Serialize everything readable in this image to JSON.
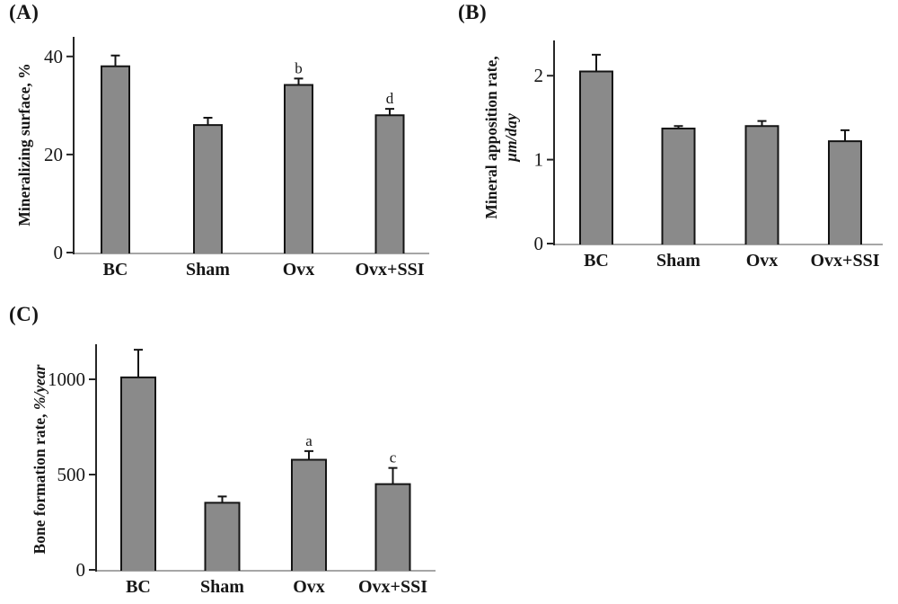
{
  "style": {
    "background": "#ffffff",
    "bar_fill": "#8a8a8a",
    "bar_stroke": "#141414",
    "x_axis_color": "#a6a6a6",
    "y_axis_color": "#262626",
    "text_color": "#161616"
  },
  "chart_data": [
    {
      "panel_label": "(A)",
      "type": "bar",
      "title": "",
      "xlabel": "",
      "ylabel": "Mineralizing surface, %",
      "ylabel_lines": [
        [
          {
            "text": "Mineralizing surface, %",
            "italic": false
          }
        ]
      ],
      "categories": [
        "BC",
        "Sham",
        "Ovx",
        "Ovx+SSI"
      ],
      "values": [
        38,
        26,
        34.2,
        28
      ],
      "errors": [
        2.2,
        1.5,
        1.3,
        1.3
      ],
      "annotations": [
        "",
        "",
        "b",
        "d"
      ],
      "yticks": [
        0,
        20,
        40
      ],
      "ylim": [
        0,
        44
      ],
      "grid": false,
      "legend": "none"
    },
    {
      "panel_label": "(B)",
      "type": "bar",
      "title": "",
      "xlabel": "",
      "ylabel": "Mineral apposition rate, μm/day",
      "ylabel_lines": [
        [
          {
            "text": "Mineral apposition rate,",
            "italic": false
          }
        ],
        [
          {
            "text": "μm/day",
            "italic": true
          }
        ]
      ],
      "categories": [
        "BC",
        "Sham",
        "Ovx",
        "Ovx+SSI"
      ],
      "values": [
        2.05,
        1.37,
        1.4,
        1.22
      ],
      "errors": [
        0.2,
        0.03,
        0.06,
        0.13
      ],
      "annotations": [
        "",
        "",
        "",
        ""
      ],
      "yticks": [
        0,
        1,
        2
      ],
      "ylim": [
        0,
        2.42
      ],
      "grid": false,
      "legend": "none"
    },
    {
      "panel_label": "(C)",
      "type": "bar",
      "title": "",
      "xlabel": "",
      "ylabel": "Bone formation rate, %/year",
      "ylabel_lines": [
        [
          {
            "text": "Bone formation rate, ",
            "italic": false
          },
          {
            "text": "%/year",
            "italic": true
          }
        ]
      ],
      "categories": [
        "BC",
        "Sham",
        "Ovx",
        "Ovx+SSI"
      ],
      "values": [
        1010,
        352,
        578,
        450
      ],
      "errors": [
        145,
        33,
        45,
        85
      ],
      "annotations": [
        "",
        "",
        "a",
        "c"
      ],
      "yticks": [
        0,
        500,
        1000
      ],
      "ylim": [
        0,
        1184
      ],
      "grid": false,
      "legend": "none"
    }
  ]
}
